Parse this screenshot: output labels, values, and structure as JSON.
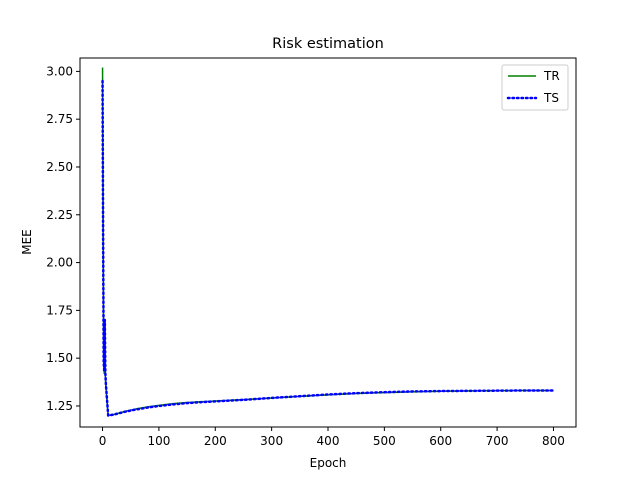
{
  "chart_data": {
    "type": "line",
    "title": "Risk estimation",
    "xlabel": "Epoch",
    "ylabel": "MEE",
    "xlim": [
      -40,
      840
    ],
    "ylim": [
      1.14,
      3.07
    ],
    "xticks": [
      0,
      100,
      200,
      300,
      400,
      500,
      600,
      700,
      800
    ],
    "xtick_labels": [
      "0",
      "100",
      "200",
      "300",
      "400",
      "500",
      "600",
      "700",
      "800"
    ],
    "yticks": [
      1.25,
      1.5,
      1.75,
      2.0,
      2.25,
      2.5,
      2.75,
      3.0
    ],
    "ytick_labels": [
      "1.25",
      "1.50",
      "1.75",
      "2.00",
      "2.25",
      "2.50",
      "2.75",
      "3.00"
    ],
    "grid": false,
    "legend_position": "top-right",
    "series": [
      {
        "name": "TR",
        "color": "#008000",
        "style": "solid",
        "x": [
          0,
          1,
          2,
          3,
          4,
          5,
          6,
          8,
          10,
          20,
          40,
          60,
          80,
          100,
          125,
          150,
          175,
          200,
          250,
          300,
          350,
          400,
          450,
          500,
          550,
          600,
          650,
          700,
          750,
          800
        ],
        "y": [
          3.02,
          2.2,
          1.5,
          1.42,
          1.68,
          1.4,
          1.35,
          1.27,
          1.2,
          1.205,
          1.222,
          1.235,
          1.245,
          1.253,
          1.262,
          1.268,
          1.272,
          1.276,
          1.283,
          1.292,
          1.3,
          1.308,
          1.315,
          1.32,
          1.324,
          1.327,
          1.329,
          1.33,
          1.331,
          1.331
        ]
      },
      {
        "name": "TS",
        "color": "#0000ff",
        "style": "dotted",
        "x": [
          0,
          1,
          2,
          3,
          4,
          5,
          6,
          8,
          10,
          20,
          40,
          60,
          80,
          100,
          125,
          150,
          175,
          200,
          250,
          300,
          350,
          400,
          450,
          500,
          550,
          600,
          650,
          700,
          750,
          800
        ],
        "y": [
          2.95,
          2.15,
          1.48,
          1.43,
          1.7,
          1.42,
          1.36,
          1.28,
          1.2,
          1.205,
          1.22,
          1.232,
          1.242,
          1.25,
          1.258,
          1.265,
          1.27,
          1.274,
          1.282,
          1.292,
          1.301,
          1.31,
          1.317,
          1.322,
          1.326,
          1.328,
          1.329,
          1.33,
          1.331,
          1.331
        ]
      }
    ]
  }
}
